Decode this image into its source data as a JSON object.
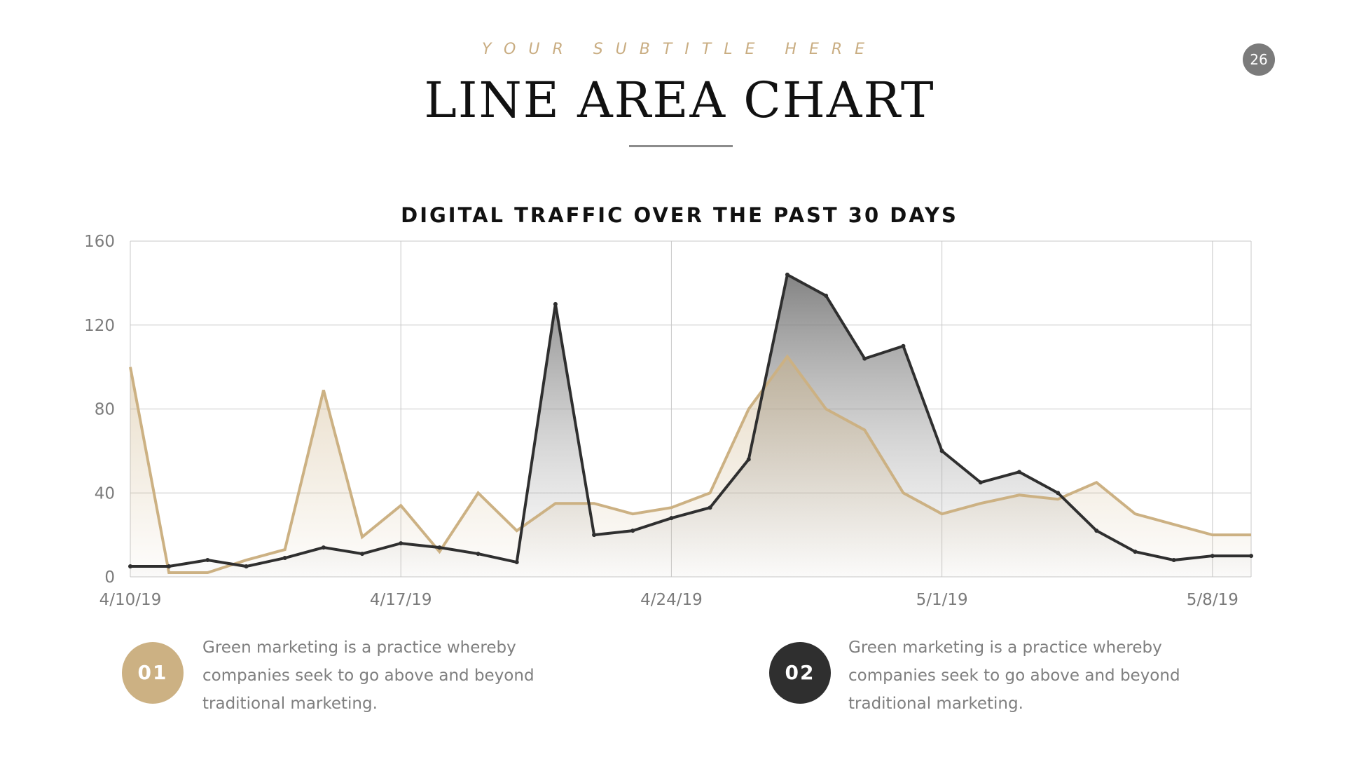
{
  "header": {
    "subtitle": "YOUR SUBTITLE HERE",
    "title": "LINE AREA CHART",
    "page_number": "26"
  },
  "colors": {
    "gold": "#ccb183",
    "dark": "#2f2f2f",
    "grid": "#c8c8c8",
    "axis_text": "#7b7b7b"
  },
  "chart_data": {
    "type": "area",
    "title": "DIGITAL TRAFFIC OVER THE PAST 30 DAYS",
    "xlabel": "",
    "ylabel": "",
    "ylim": [
      0,
      160
    ],
    "yticks": [
      0,
      40,
      80,
      120,
      160
    ],
    "x_tick_labels": [
      "4/10/19",
      "4/17/19",
      "4/24/19",
      "5/1/19",
      "5/8/19"
    ],
    "x_tick_indices": [
      0,
      7,
      14,
      21,
      28
    ],
    "x": [
      "4/10/19",
      "4/11/19",
      "4/12/19",
      "4/13/19",
      "4/14/19",
      "4/15/19",
      "4/16/19",
      "4/17/19",
      "4/18/19",
      "4/19/19",
      "4/20/19",
      "4/21/19",
      "4/22/19",
      "4/23/19",
      "4/24/19",
      "4/25/19",
      "4/26/19",
      "4/27/19",
      "4/28/19",
      "4/29/19",
      "4/30/19",
      "5/1/19",
      "5/2/19",
      "5/3/19",
      "5/4/19",
      "5/5/19",
      "5/6/19",
      "5/7/19",
      "5/8/19",
      "5/9/19"
    ],
    "grid": true,
    "legend": "none",
    "series": [
      {
        "color": "#ccb183",
        "values": [
          100,
          2,
          2,
          8,
          13,
          89,
          19,
          34,
          12,
          40,
          22,
          35,
          35,
          30,
          33,
          40,
          80,
          105,
          80,
          70,
          40,
          30,
          35,
          39,
          37,
          45,
          30,
          25,
          20,
          20
        ]
      },
      {
        "color": "#2f2f2f",
        "values": [
          5,
          5,
          8,
          5,
          9,
          14,
          11,
          16,
          14,
          11,
          7,
          130,
          20,
          22,
          28,
          33,
          56,
          144,
          134,
          104,
          110,
          60,
          45,
          50,
          40,
          22,
          12,
          8,
          10,
          10
        ]
      }
    ]
  },
  "notes": [
    {
      "number": "01",
      "text": "Green marketing is a practice whereby companies seek to go above and beyond traditional marketing."
    },
    {
      "number": "02",
      "text": "Green marketing is a practice whereby companies seek to go above and beyond traditional marketing."
    }
  ]
}
